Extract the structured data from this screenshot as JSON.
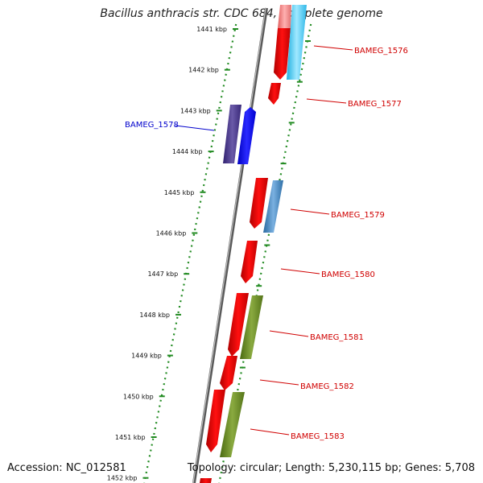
{
  "title": "Bacillus anthracis str. CDC 684, complete genome",
  "accession": "Accession: NC_012581",
  "topology": "Topology: circular; Length: 5,230,115 bp; Genes: 5,708",
  "colors": {
    "tick": "#228b22",
    "backbone": "#7a7a7a",
    "forward_label": "#d00000",
    "reverse_label": "#0000cc"
  },
  "kbp_labels": [
    "1441 kbp",
    "1442 kbp",
    "1443 kbp",
    "1444 kbp",
    "1445 kbp",
    "1446 kbp",
    "1447 kbp",
    "1448 kbp",
    "1449 kbp",
    "1450 kbp",
    "1451 kbp",
    "1452 kbp"
  ],
  "genes": [
    {
      "name": "BAMEG_1576",
      "strand": "forward",
      "color": "red"
    },
    {
      "name": "BAMEG_1577",
      "strand": "forward",
      "color": "red"
    },
    {
      "name": "BAMEG_1578",
      "strand": "reverse",
      "color": "blue"
    },
    {
      "name": "BAMEG_1579",
      "strand": "forward",
      "color": "red"
    },
    {
      "name": "BAMEG_1580",
      "strand": "forward",
      "color": "red"
    },
    {
      "name": "BAMEG_1581",
      "strand": "forward",
      "color": "red"
    },
    {
      "name": "BAMEG_1582",
      "strand": "forward",
      "color": "red"
    },
    {
      "name": "BAMEG_1583",
      "strand": "forward",
      "color": "red"
    }
  ]
}
